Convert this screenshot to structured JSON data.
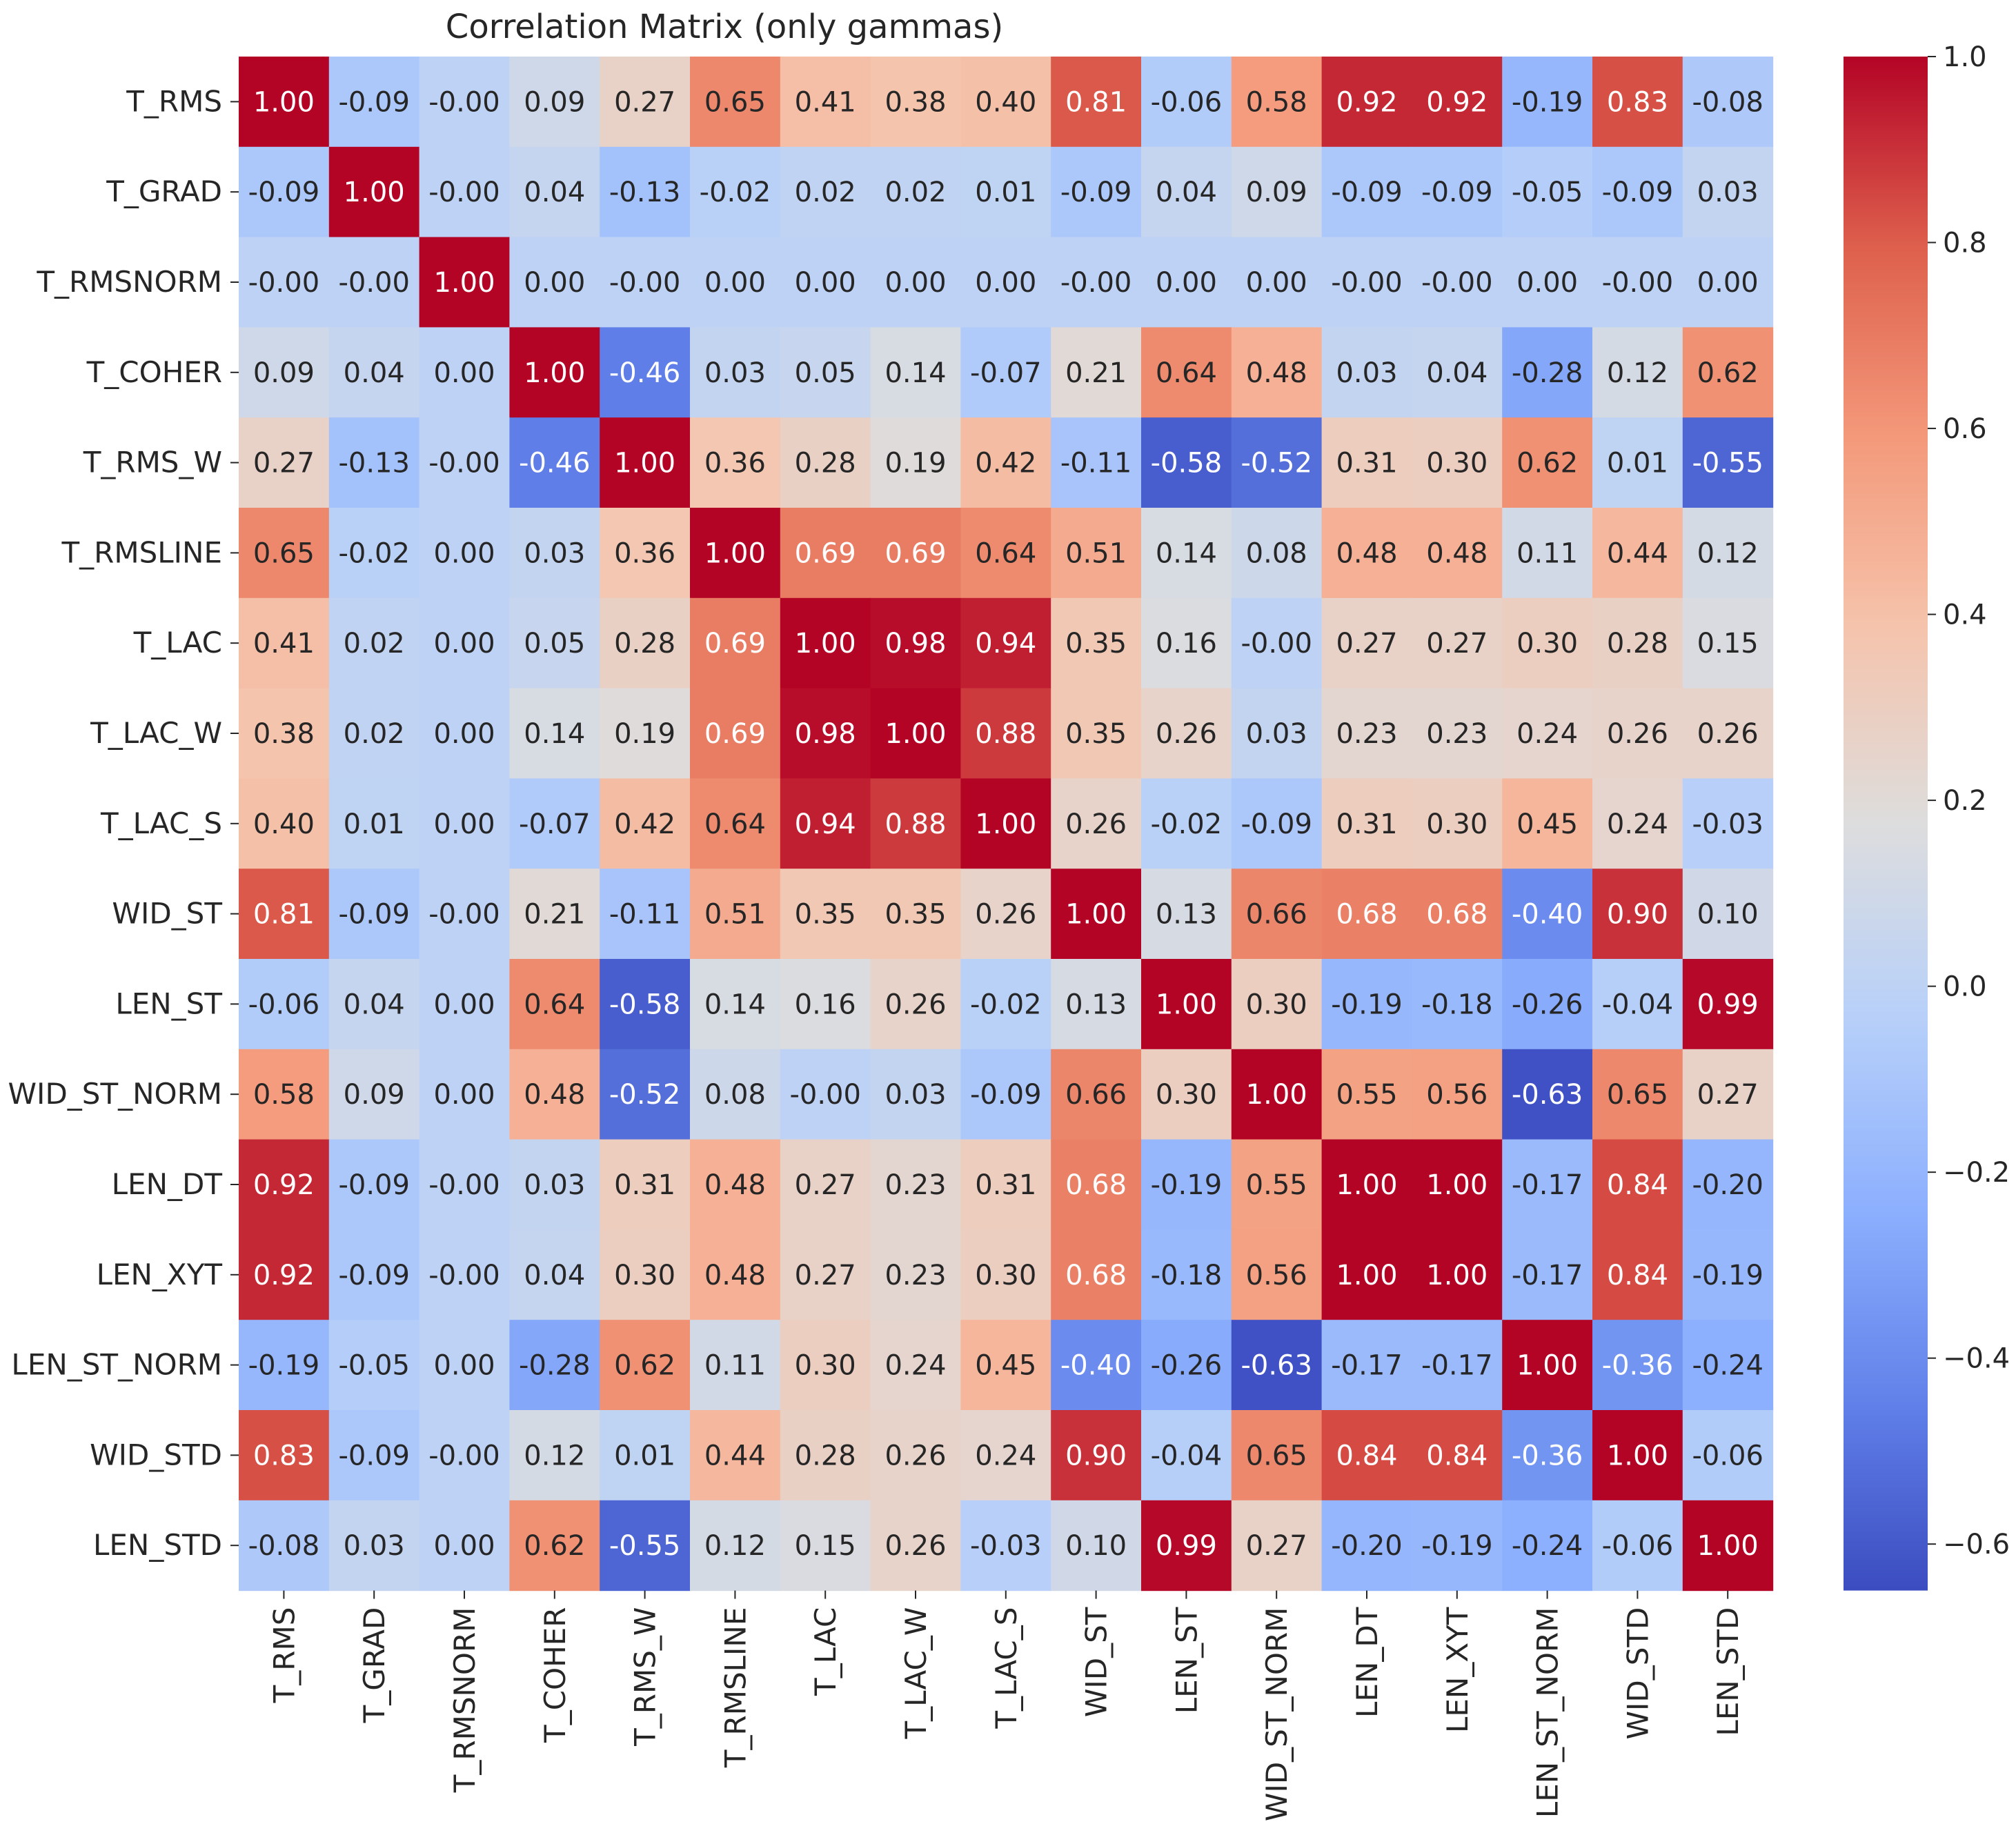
{
  "chart_data": {
    "type": "heatmap",
    "title": "Correlation Matrix (only gammas)",
    "labels": [
      "T_RMS",
      "T_GRAD",
      "T_RMSNORM",
      "T_COHER",
      "T_RMS_W",
      "T_RMSLINE",
      "T_LAC",
      "T_LAC_W",
      "T_LAC_S",
      "WID_ST",
      "LEN_ST",
      "WID_ST_NORM",
      "LEN_DT",
      "LEN_XYT",
      "LEN_ST_NORM",
      "WID_STD",
      "LEN_STD"
    ],
    "values": [
      [
        1.0,
        -0.09,
        -0.0,
        0.09,
        0.27,
        0.65,
        0.41,
        0.38,
        0.4,
        0.81,
        -0.06,
        0.58,
        0.92,
        0.92,
        -0.19,
        0.83,
        -0.08
      ],
      [
        -0.09,
        1.0,
        -0.0,
        0.04,
        -0.13,
        -0.02,
        0.02,
        0.02,
        0.01,
        -0.09,
        0.04,
        0.09,
        -0.09,
        -0.09,
        -0.05,
        -0.09,
        0.03
      ],
      [
        -0.0,
        -0.0,
        1.0,
        0.0,
        -0.0,
        0.0,
        0.0,
        0.0,
        0.0,
        -0.0,
        0.0,
        0.0,
        -0.0,
        -0.0,
        0.0,
        -0.0,
        0.0
      ],
      [
        0.09,
        0.04,
        0.0,
        1.0,
        -0.46,
        0.03,
        0.05,
        0.14,
        -0.07,
        0.21,
        0.64,
        0.48,
        0.03,
        0.04,
        -0.28,
        0.12,
        0.62
      ],
      [
        0.27,
        -0.13,
        -0.0,
        -0.46,
        1.0,
        0.36,
        0.28,
        0.19,
        0.42,
        -0.11,
        -0.58,
        -0.52,
        0.31,
        0.3,
        0.62,
        0.01,
        -0.55
      ],
      [
        0.65,
        -0.02,
        0.0,
        0.03,
        0.36,
        1.0,
        0.69,
        0.69,
        0.64,
        0.51,
        0.14,
        0.08,
        0.48,
        0.48,
        0.11,
        0.44,
        0.12
      ],
      [
        0.41,
        0.02,
        0.0,
        0.05,
        0.28,
        0.69,
        1.0,
        0.98,
        0.94,
        0.35,
        0.16,
        -0.0,
        0.27,
        0.27,
        0.3,
        0.28,
        0.15
      ],
      [
        0.38,
        0.02,
        0.0,
        0.14,
        0.19,
        0.69,
        0.98,
        1.0,
        0.88,
        0.35,
        0.26,
        0.03,
        0.23,
        0.23,
        0.24,
        0.26,
        0.26
      ],
      [
        0.4,
        0.01,
        0.0,
        -0.07,
        0.42,
        0.64,
        0.94,
        0.88,
        1.0,
        0.26,
        -0.02,
        -0.09,
        0.31,
        0.3,
        0.45,
        0.24,
        -0.03
      ],
      [
        0.81,
        -0.09,
        -0.0,
        0.21,
        -0.11,
        0.51,
        0.35,
        0.35,
        0.26,
        1.0,
        0.13,
        0.66,
        0.68,
        0.68,
        -0.4,
        0.9,
        0.1
      ],
      [
        -0.06,
        0.04,
        0.0,
        0.64,
        -0.58,
        0.14,
        0.16,
        0.26,
        -0.02,
        0.13,
        1.0,
        0.3,
        -0.19,
        -0.18,
        -0.26,
        -0.04,
        0.99
      ],
      [
        0.58,
        0.09,
        0.0,
        0.48,
        -0.52,
        0.08,
        -0.0,
        0.03,
        -0.09,
        0.66,
        0.3,
        1.0,
        0.55,
        0.56,
        -0.63,
        0.65,
        0.27
      ],
      [
        0.92,
        -0.09,
        -0.0,
        0.03,
        0.31,
        0.48,
        0.27,
        0.23,
        0.31,
        0.68,
        -0.19,
        0.55,
        1.0,
        1.0,
        -0.17,
        0.84,
        -0.2
      ],
      [
        0.92,
        -0.09,
        -0.0,
        0.04,
        0.3,
        0.48,
        0.27,
        0.23,
        0.3,
        0.68,
        -0.18,
        0.56,
        1.0,
        1.0,
        -0.17,
        0.84,
        -0.19
      ],
      [
        -0.19,
        -0.05,
        0.0,
        -0.28,
        0.62,
        0.11,
        0.3,
        0.24,
        0.45,
        -0.4,
        -0.26,
        -0.63,
        -0.17,
        -0.17,
        1.0,
        -0.36,
        -0.24
      ],
      [
        0.83,
        -0.09,
        -0.0,
        0.12,
        0.01,
        0.44,
        0.28,
        0.26,
        0.24,
        0.9,
        -0.04,
        0.65,
        0.84,
        0.84,
        -0.36,
        1.0,
        -0.06
      ],
      [
        -0.08,
        0.03,
        0.0,
        0.62,
        -0.55,
        0.12,
        0.15,
        0.26,
        -0.03,
        0.1,
        0.99,
        0.27,
        -0.2,
        -0.19,
        -0.24,
        -0.06,
        1.0
      ]
    ],
    "colormap": "coolwarm",
    "vmin": -0.65,
    "vmax": 1.0,
    "colorbar_ticks": [
      1.0,
      0.8,
      0.6,
      0.4,
      0.2,
      0.0,
      -0.2,
      -0.4,
      -0.6
    ],
    "colorbar_tick_labels": [
      "1.0",
      "0.8",
      "0.6",
      "0.4",
      "0.2",
      "0.0",
      "−0.2",
      "−0.4",
      "−0.6"
    ],
    "annotation_format": "0.00",
    "xlabel": "",
    "ylabel": ""
  }
}
